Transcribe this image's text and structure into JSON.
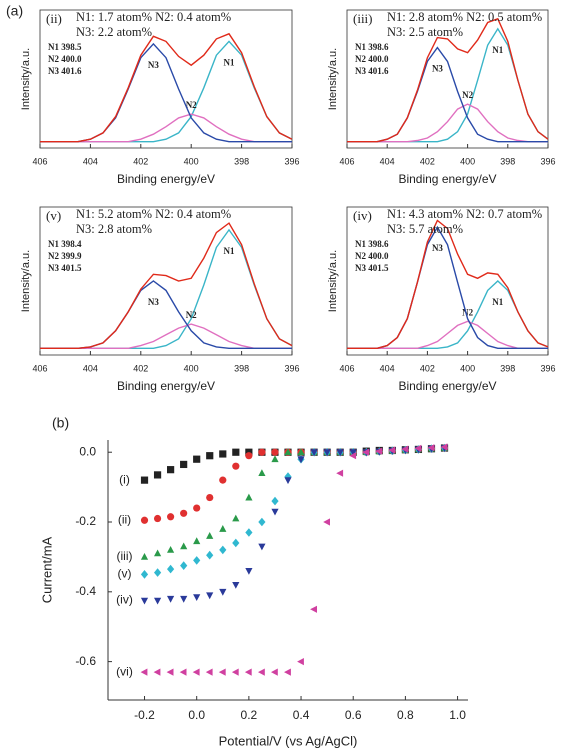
{
  "figure_labels": [
    "(a)",
    "(b)"
  ],
  "chart_data": [
    {
      "type": "line",
      "label": "(ii)",
      "annotations": [
        "N1: 1.7 atom%  N2: 0.4 atom%",
        "N3: 2.2 atom%"
      ],
      "peak_positions": [
        "N1 398.5",
        "N2 400.0",
        "N3 401.6"
      ],
      "xlabel": "Binding energy/eV",
      "ylabel": "Intensity/a.u.",
      "x": [
        406,
        405.5,
        405,
        404.5,
        404,
        403.5,
        403,
        402.5,
        402,
        401.5,
        401,
        400.5,
        400,
        399.5,
        399,
        398.5,
        398,
        397.5,
        397,
        396.5,
        396
      ],
      "xlim": [
        406,
        396
      ],
      "xticks": [
        406,
        404,
        402,
        400,
        398,
        396
      ],
      "ylim": [
        0,
        110
      ],
      "series": [
        {
          "name": "N1",
          "color": "#3ab5c8",
          "values": [
            5,
            5,
            5,
            5,
            5,
            5,
            5,
            5,
            5,
            5,
            7,
            12,
            25,
            48,
            74,
            85,
            74,
            48,
            25,
            12,
            7
          ]
        },
        {
          "name": "N2",
          "color": "#e070c0",
          "values": [
            5,
            5,
            5,
            5,
            5,
            5,
            5,
            5,
            7,
            11,
            17,
            24,
            27,
            24,
            17,
            11,
            7,
            5,
            5,
            5,
            5
          ]
        },
        {
          "name": "N3",
          "color": "#2a4aa8",
          "values": [
            5,
            5,
            5,
            5,
            7,
            12,
            24,
            47,
            72,
            83,
            72,
            47,
            24,
            12,
            7,
            5,
            5,
            5,
            5,
            5,
            5
          ]
        },
        {
          "color": "#e02a1a",
          "values": [
            5,
            5,
            5,
            5,
            7,
            12,
            25,
            48,
            74,
            89,
            85,
            73,
            66,
            74,
            87,
            91,
            76,
            49,
            25,
            12,
            7
          ]
        }
      ]
    },
    {
      "type": "line",
      "label": "(iii)",
      "annotations": [
        "N1: 2.8 atom%  N2: 0.5 atom%",
        "N3: 2.5 atom%"
      ],
      "peak_positions": [
        "N1 398.6",
        "N2 400.0",
        "N3 401.6"
      ],
      "xlabel": "Binding energy/eV",
      "ylabel": "Intensity/a.u.",
      "x": [
        406,
        405.5,
        405,
        404.5,
        404,
        403.5,
        403,
        402.5,
        402,
        401.5,
        401,
        400.5,
        400,
        399.5,
        399,
        398.5,
        398,
        397.5,
        397,
        396.5,
        396
      ],
      "xlim": [
        406,
        396
      ],
      "xticks": [
        406,
        404,
        402,
        400,
        398,
        396
      ],
      "ylim": [
        0,
        110
      ],
      "series": [
        {
          "name": "N1",
          "color": "#3ab5c8",
          "values": [
            5,
            5,
            5,
            5,
            5,
            5,
            5,
            5,
            5,
            5,
            7,
            13,
            27,
            54,
            82,
            95,
            82,
            54,
            27,
            13,
            7
          ]
        },
        {
          "name": "N2",
          "color": "#e070c0",
          "values": [
            5,
            5,
            5,
            5,
            5,
            5,
            5,
            6,
            8,
            13,
            21,
            31,
            35,
            31,
            21,
            13,
            8,
            6,
            5,
            5,
            5
          ]
        },
        {
          "name": "N3",
          "color": "#2a4aa8",
          "values": [
            5,
            5,
            5,
            5,
            7,
            11,
            24,
            45,
            69,
            80,
            69,
            45,
            24,
            11,
            7,
            5,
            5,
            5,
            5,
            5,
            5
          ]
        },
        {
          "color": "#e02a1a",
          "values": [
            5,
            5,
            5,
            5,
            7,
            11,
            24,
            46,
            72,
            88,
            87,
            79,
            76,
            86,
            100,
            103,
            85,
            54,
            27,
            13,
            7
          ]
        }
      ]
    },
    {
      "type": "line",
      "label": "(v)",
      "annotations": [
        "N1: 5.2 atom%  N2: 0.4 atom%",
        "N3: 2.8 atom%"
      ],
      "peak_positions": [
        "N1 398.4",
        "N2 399.9",
        "N3 401.5"
      ],
      "xlabel": "Binding energy/eV",
      "ylabel": "Intensity/a.u.",
      "x": [
        406,
        405.5,
        405,
        404.5,
        404,
        403.5,
        403,
        402.5,
        402,
        401.5,
        401,
        400.5,
        400,
        399.5,
        399,
        398.5,
        398,
        397.5,
        397,
        396.5,
        396
      ],
      "xlim": [
        406,
        396
      ],
      "xticks": [
        406,
        404,
        402,
        400,
        398,
        396
      ],
      "ylim": [
        0,
        110
      ],
      "series": [
        {
          "name": "N1",
          "color": "#3ab5c8",
          "values": [
            5,
            5,
            5,
            5,
            5,
            5,
            5,
            5,
            5,
            5,
            7,
            12,
            27,
            52,
            80,
            93,
            80,
            52,
            27,
            12,
            7
          ]
        },
        {
          "name": "N2",
          "color": "#e070c0",
          "values": [
            5,
            5,
            5,
            5,
            5,
            5,
            5,
            5,
            7,
            10,
            15,
            20,
            23,
            20,
            15,
            10,
            7,
            5,
            5,
            5,
            5
          ]
        },
        {
          "name": "N3",
          "color": "#2a4aa8",
          "values": [
            5,
            5,
            5,
            5,
            6,
            9,
            18,
            32,
            48,
            55,
            48,
            32,
            18,
            9,
            6,
            5,
            5,
            5,
            5,
            5,
            5
          ]
        },
        {
          "color": "#e02a1a",
          "values": [
            5,
            5,
            5,
            5,
            6,
            9,
            18,
            32,
            49,
            60,
            59,
            55,
            57,
            72,
            91,
            98,
            82,
            53,
            27,
            12,
            7
          ]
        }
      ]
    },
    {
      "type": "line",
      "label": "(iv)",
      "annotations": [
        "N1: 4.3 atom%  N2: 0.7 atom%",
        "N3: 5.7 atom%"
      ],
      "peak_positions": [
        "N1 398.6",
        "N2 400.0",
        "N3 401.5"
      ],
      "xlabel": "Binding energy/eV",
      "ylabel": "Intensity/a.u.",
      "x": [
        406,
        405.5,
        405,
        404.5,
        404,
        403.5,
        403,
        402.5,
        402,
        401.5,
        401,
        400.5,
        400,
        399.5,
        399,
        398.5,
        398,
        397.5,
        397,
        396.5,
        396
      ],
      "xlim": [
        406,
        396
      ],
      "xticks": [
        406,
        404,
        402,
        400,
        398,
        396
      ],
      "ylim": [
        0,
        110
      ],
      "series": [
        {
          "name": "N1",
          "color": "#3ab5c8",
          "values": [
            5,
            5,
            5,
            5,
            5,
            5,
            5,
            5,
            5,
            5,
            6,
            9,
            18,
            32,
            48,
            55,
            48,
            32,
            18,
            9,
            6
          ]
        },
        {
          "name": "N2",
          "color": "#e070c0",
          "values": [
            5,
            5,
            5,
            5,
            5,
            5,
            5,
            5,
            7,
            10,
            16,
            22,
            25,
            22,
            16,
            10,
            7,
            5,
            5,
            5,
            5
          ]
        },
        {
          "name": "N3",
          "color": "#2a4aa8",
          "values": [
            5,
            5,
            5,
            5,
            7,
            13,
            27,
            54,
            82,
            95,
            82,
            54,
            27,
            13,
            7,
            5,
            5,
            5,
            5,
            5,
            5
          ]
        },
        {
          "color": "#e02a1a",
          "values": [
            5,
            5,
            5,
            5,
            7,
            13,
            27,
            54,
            84,
            100,
            94,
            75,
            60,
            57,
            61,
            60,
            50,
            32,
            18,
            9,
            6
          ]
        }
      ]
    },
    {
      "type": "scatter",
      "xlabel": "Potential/V (vs Ag/AgCl)",
      "ylabel": "Current/mA",
      "x": [
        -0.2,
        -0.15,
        -0.1,
        -0.05,
        0,
        0.05,
        0.1,
        0.15,
        0.2,
        0.25,
        0.3,
        0.35,
        0.4,
        0.45,
        0.5,
        0.55,
        0.6,
        0.65,
        0.7,
        0.75,
        0.8,
        0.85,
        0.9,
        0.95
      ],
      "xlim": [
        -0.34,
        1.04
      ],
      "xticks": [
        -0.2,
        {
          "value": 0,
          "label": "0.0"
        },
        0.2,
        0.4,
        0.6,
        0.8,
        {
          "value": 1,
          "label": "1.0"
        }
      ],
      "ylim": [
        -0.71,
        0.035
      ],
      "yticks": [
        {
          "value": 0,
          "label": "0.0"
        },
        -0.2,
        -0.4,
        -0.6
      ],
      "series": [
        {
          "name": "(i)",
          "color": "#222222",
          "marker": "square",
          "values": [
            -0.08,
            -0.065,
            -0.05,
            -0.035,
            -0.02,
            -0.01,
            -0.005,
            0,
            0,
            0,
            0,
            0,
            0,
            0,
            0,
            0,
            0,
            0.003,
            0.005,
            0.005,
            0.007,
            0.008,
            0.01,
            0.012
          ]
        },
        {
          "name": "(ii)",
          "color": "#e03030",
          "marker": "circle",
          "values": [
            -0.195,
            -0.19,
            -0.185,
            -0.175,
            -0.16,
            -0.13,
            -0.08,
            -0.04,
            -0.01,
            0,
            0,
            0,
            0,
            0,
            0,
            0,
            0,
            0,
            0.002,
            0.004,
            0.006,
            0.008,
            0.01,
            0.012
          ]
        },
        {
          "name": "(iii)",
          "color": "#2a9a4a",
          "marker": "triangle-up",
          "values": [
            -0.3,
            -0.29,
            -0.28,
            -0.27,
            -0.255,
            -0.24,
            -0.22,
            -0.19,
            -0.13,
            -0.06,
            -0.02,
            0,
            0,
            0,
            0,
            0,
            0,
            0,
            0.002,
            0.004,
            0.006,
            0.008,
            0.01,
            0.012
          ]
        },
        {
          "name": "(v)",
          "color": "#30b8d0",
          "marker": "diamond",
          "values": [
            -0.35,
            -0.345,
            -0.335,
            -0.325,
            -0.31,
            -0.295,
            -0.28,
            -0.26,
            -0.23,
            -0.2,
            -0.14,
            -0.07,
            -0.02,
            0,
            0,
            0,
            0,
            0,
            0.002,
            0.004,
            0.006,
            0.008,
            0.01,
            0.012
          ]
        },
        {
          "name": "(iv)",
          "color": "#2a3a9a",
          "marker": "triangle-down",
          "values": [
            -0.425,
            -0.425,
            -0.42,
            -0.42,
            -0.415,
            -0.41,
            -0.4,
            -0.38,
            -0.34,
            -0.27,
            -0.17,
            -0.08,
            -0.02,
            0,
            0,
            0,
            0,
            0,
            0.002,
            0.004,
            0.006,
            0.008,
            0.01,
            0.012
          ]
        },
        {
          "name": "(vi)",
          "color": "#d040a0",
          "marker": "triangle-left",
          "values": [
            -0.63,
            -0.63,
            -0.63,
            -0.63,
            -0.63,
            -0.63,
            -0.63,
            -0.63,
            -0.63,
            -0.63,
            -0.63,
            -0.63,
            -0.6,
            -0.45,
            -0.2,
            -0.06,
            -0.01,
            0,
            0.003,
            0.006,
            0.009,
            0.011,
            0.013,
            0.015
          ]
        }
      ]
    }
  ]
}
